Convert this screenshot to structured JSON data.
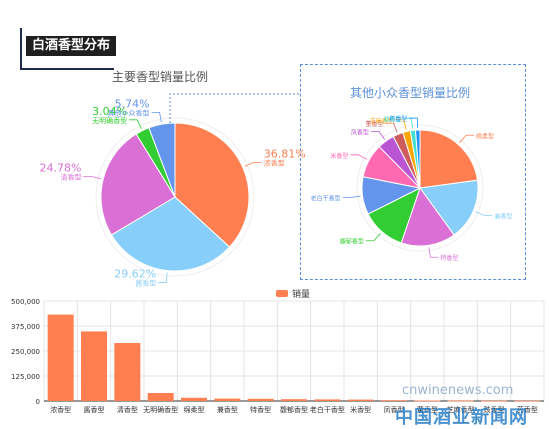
{
  "header": {
    "title": "白酒香型分布"
  },
  "chart_data": [
    {
      "type": "pie",
      "title": "主要香型销量比例",
      "slices": [
        {
          "name": "浓香型",
          "value": 36.81,
          "label": "36.81%",
          "color": "#ff7f50"
        },
        {
          "name": "酱香型",
          "value": 29.62,
          "label": "29.62%",
          "color": "#87cefa"
        },
        {
          "name": "清香型",
          "value": 24.78,
          "label": "24.78%",
          "color": "#da70d6"
        },
        {
          "name": "无明确香型",
          "value": 3.04,
          "label": "3.04%",
          "color": "#32cd32"
        },
        {
          "name": "其他小众香型",
          "value": 5.74,
          "label": "5.74%",
          "color": "#6495ed"
        }
      ]
    },
    {
      "type": "pie",
      "title": "其他小众香型销量比例",
      "slices": [
        {
          "name": "绵柔型",
          "value": 24,
          "color": "#ff7f50"
        },
        {
          "name": "兼香型",
          "value": 18,
          "color": "#87cefa"
        },
        {
          "name": "特香型",
          "value": 16,
          "color": "#da70d6"
        },
        {
          "name": "馥郁香型",
          "value": 13,
          "color": "#32cd32"
        },
        {
          "name": "老白干香型",
          "value": 11,
          "color": "#6495ed"
        },
        {
          "name": "米香型",
          "value": 10,
          "color": "#ff69b4"
        },
        {
          "name": "凤香型",
          "value": 5,
          "color": "#ba55d3"
        },
        {
          "name": "董香型",
          "value": 3,
          "color": "#cd5c5c"
        },
        {
          "name": "芝麻香型",
          "value": 2.2,
          "color": "#ffa500"
        },
        {
          "name": "豉香型",
          "value": 1.5,
          "color": "#40e0d0"
        },
        {
          "name": "药香型",
          "value": 1.3,
          "color": "#1e90ff"
        }
      ]
    },
    {
      "type": "bar",
      "legend": "销量",
      "color": "#ff7f50",
      "categories": [
        "浓香型",
        "酱香型",
        "清香型",
        "无明确香型",
        "绵柔型",
        "兼香型",
        "特香型",
        "馥郁香型",
        "老白干香型",
        "米香型",
        "凤香型",
        "董香型",
        "芝麻香型",
        "豉香型",
        "药香型"
      ],
      "values": [
        432000,
        348000,
        290000,
        40000,
        16000,
        12000,
        11000,
        9000,
        8000,
        7000,
        4000,
        2500,
        1800,
        1200,
        1000
      ],
      "ylim": [
        0,
        500000
      ],
      "yticks": [
        0,
        125000,
        250000,
        375000,
        500000
      ],
      "ytick_labels": [
        "0",
        "125,000",
        "250,000",
        "375,000",
        "500,000"
      ]
    }
  ],
  "watermark": {
    "en": "cnwinenews.com",
    "cn": "中国酒业新闻网"
  }
}
